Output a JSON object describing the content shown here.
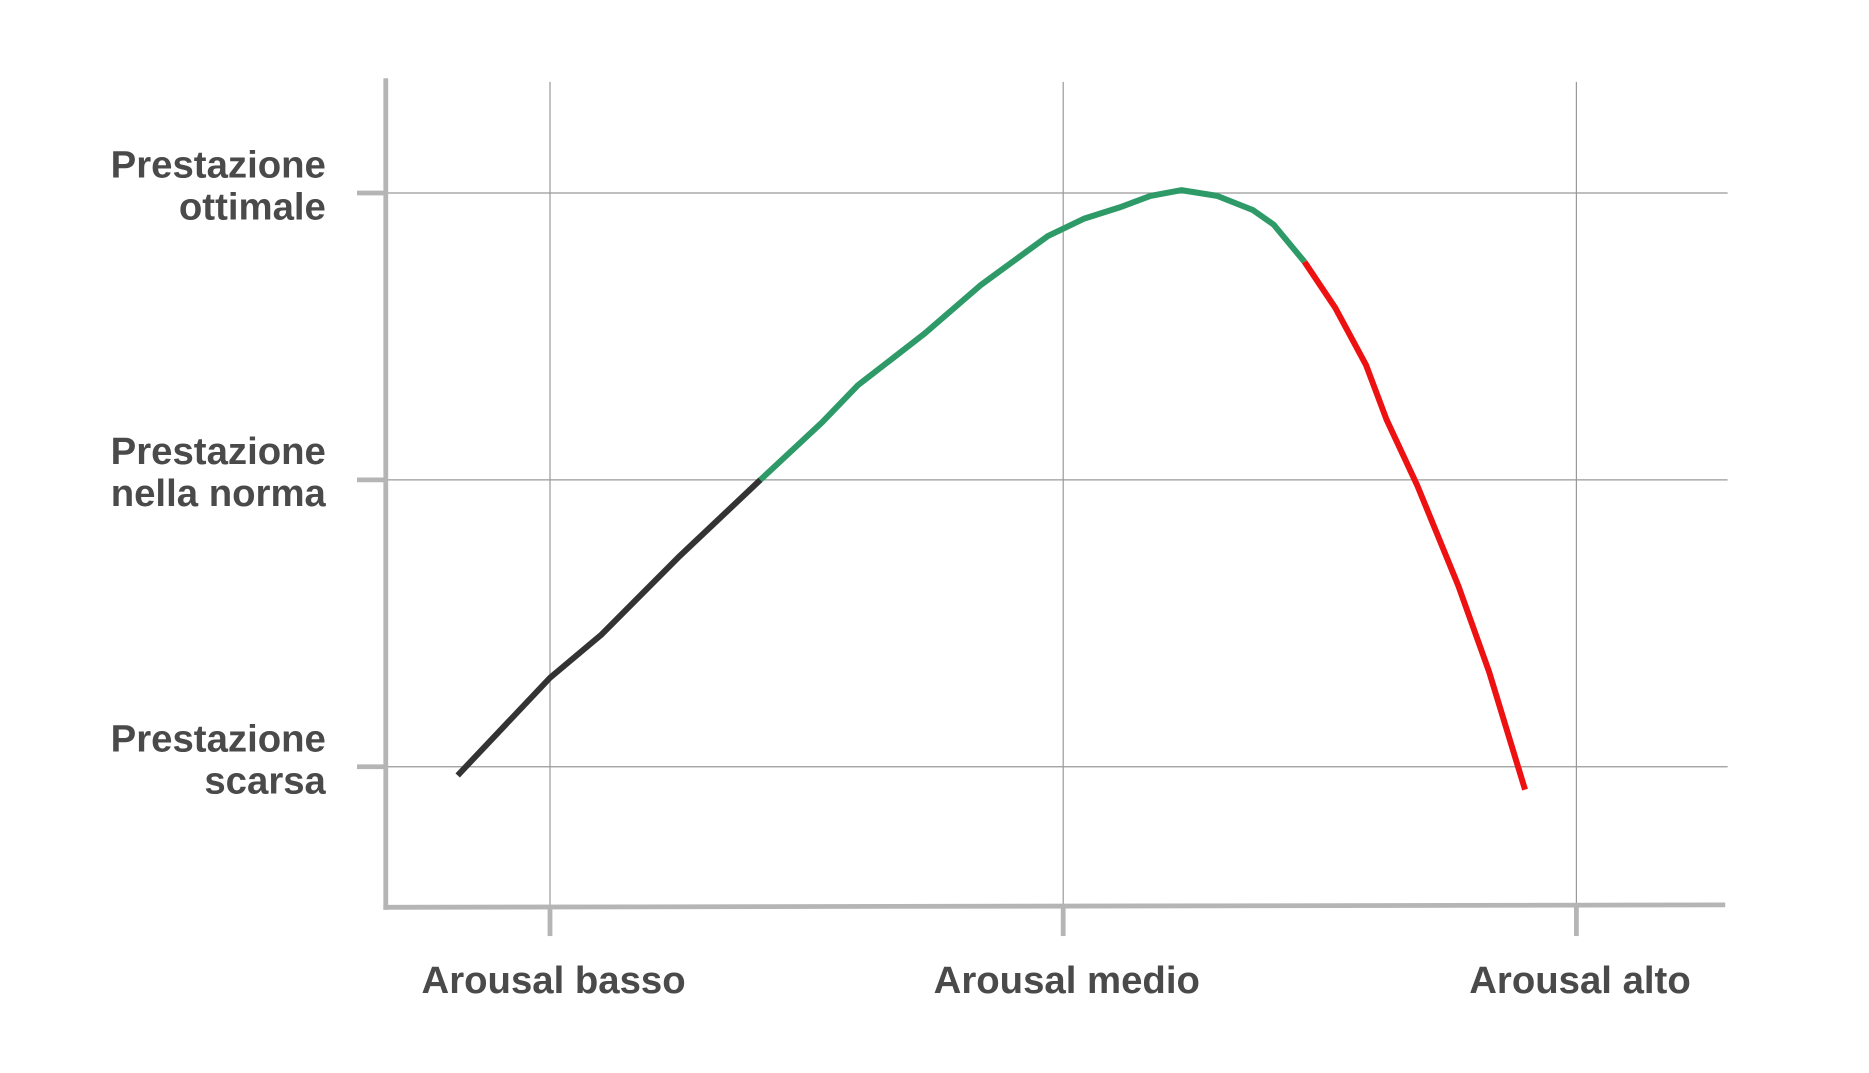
{
  "chart_data": {
    "type": "line",
    "xlim": [
      0.68,
      3.29
    ],
    "ylim": [
      0.51,
      3.4
    ],
    "xticks": [
      {
        "value": 1,
        "label": "Arousal basso"
      },
      {
        "value": 2,
        "label": "Arousal medio"
      },
      {
        "value": 3,
        "label": "Arousal alto"
      }
    ],
    "yticks": [
      {
        "value": 1,
        "label": "Prestazione scarsa"
      },
      {
        "value": 2,
        "label": "Prestazione nella norma"
      },
      {
        "value": 3,
        "label": "Prestazione ottimale"
      }
    ],
    "grid": true,
    "series": [
      {
        "color": "#333333",
        "x": [
          0.82,
          1.0,
          1.1,
          1.25,
          1.41
        ],
        "values": [
          0.97,
          1.31,
          1.46,
          1.73,
          2.0
        ]
      },
      {
        "color": "#2e9a68",
        "x": [
          1.41,
          1.53,
          1.6,
          1.73,
          1.84,
          1.97,
          2.04,
          2.11,
          2.17,
          2.23,
          2.3,
          2.37,
          2.41,
          2.47
        ],
        "values": [
          2.0,
          2.2,
          2.33,
          2.51,
          2.68,
          2.85,
          2.91,
          2.95,
          2.99,
          3.01,
          2.99,
          2.94,
          2.89,
          2.76
        ]
      },
      {
        "color": "#ee1111",
        "x": [
          2.47,
          2.53,
          2.59,
          2.63,
          2.69,
          2.77,
          2.83,
          2.9
        ],
        "values": [
          2.76,
          2.6,
          2.4,
          2.21,
          1.98,
          1.63,
          1.33,
          0.92
        ]
      }
    ]
  }
}
